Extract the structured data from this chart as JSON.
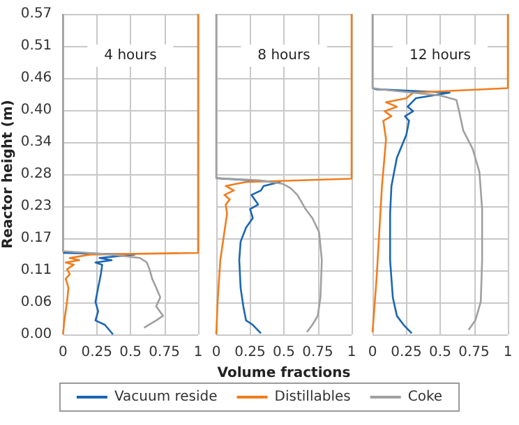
{
  "chart_data": [
    {
      "type": "line",
      "title": "4 hours",
      "ylabel": "Reactor height (m)",
      "xlim": [
        0,
        1
      ],
      "xticks": [
        0,
        0.25,
        0.5,
        0.75,
        1
      ],
      "ylim": [
        0,
        0.57
      ],
      "yticks": [
        {
          "value": 0,
          "label": "0.00"
        },
        {
          "value": 0.057,
          "label": "0.06"
        },
        {
          "value": 0.114,
          "label": "0.11"
        },
        {
          "value": 0.171,
          "label": "0.17"
        },
        {
          "value": 0.228,
          "label": "0.23"
        },
        {
          "value": 0.285,
          "label": "0.28"
        },
        {
          "value": 0.342,
          "label": "0.34"
        },
        {
          "value": 0.399,
          "label": "0.40"
        },
        {
          "value": 0.456,
          "label": "0.46"
        },
        {
          "value": 0.513,
          "label": "0.51"
        },
        {
          "value": 0.57,
          "label": "0.57"
        }
      ],
      "grid": true,
      "marker": "none",
      "line_style": "solid",
      "series": [
        {
          "color": "#1a66b3",
          "x": [
            0.37,
            0.31,
            0.24,
            0.26,
            0.24,
            0.26,
            0.28,
            0.29,
            0.24,
            0.36,
            0.27,
            0.53,
            0
          ],
          "values": [
            0,
            0.017,
            0.025,
            0.041,
            0.058,
            0.083,
            0.107,
            0.124,
            0.128,
            0.132,
            0.136,
            0.142,
            0.145
          ]
        },
        {
          "color": "#f07d1e",
          "x": [
            0,
            0.01,
            0.03,
            0.04,
            0.02,
            0.05,
            0.03,
            0.08,
            0.02,
            0.12,
            0.05,
            0.2,
            1,
            1
          ],
          "values": [
            0,
            0.025,
            0.058,
            0.083,
            0.099,
            0.107,
            0.116,
            0.124,
            0.128,
            0.132,
            0.136,
            0.142,
            0.145,
            0.57
          ]
        },
        {
          "color": "#a0a0a0",
          "x": [
            0.6,
            0.69,
            0.74,
            0.69,
            0.72,
            0.69,
            0.66,
            0.64,
            0.62,
            0.57,
            0.36,
            0,
            0
          ],
          "values": [
            0.012,
            0.025,
            0.033,
            0.05,
            0.066,
            0.083,
            0.099,
            0.116,
            0.128,
            0.136,
            0.142,
            0.148,
            0.57
          ]
        }
      ]
    },
    {
      "type": "line",
      "title": "8 hours",
      "xlabel": "Volume fractions",
      "xlim": [
        0,
        1
      ],
      "xticks": [
        0,
        0.25,
        0.5,
        0.75,
        1
      ],
      "ylim": [
        0,
        0.57
      ],
      "yticks": [
        {
          "value": 0,
          "label": null
        },
        {
          "value": 0.057,
          "label": null
        },
        {
          "value": 0.114,
          "label": null
        },
        {
          "value": 0.171,
          "label": null
        },
        {
          "value": 0.228,
          "label": null
        },
        {
          "value": 0.285,
          "label": null
        },
        {
          "value": 0.342,
          "label": null
        },
        {
          "value": 0.399,
          "label": null
        },
        {
          "value": 0.456,
          "label": null
        },
        {
          "value": 0.513,
          "label": null
        },
        {
          "value": 0.57,
          "label": null
        }
      ],
      "grid": true,
      "legend": "bottom",
      "tick_labels": "x",
      "marker": "none",
      "line_style": "solid",
      "series": [
        {
          "name": "Vacuum reside",
          "color": "#1a66b3",
          "x": [
            0.33,
            0.27,
            0.22,
            0.2,
            0.18,
            0.17,
            0.18,
            0.22,
            0.27,
            0.25,
            0.31,
            0.26,
            0.33,
            0.35,
            0.47,
            0.05,
            0
          ],
          "values": [
            0.002,
            0.017,
            0.025,
            0.05,
            0.083,
            0.132,
            0.165,
            0.19,
            0.207,
            0.223,
            0.231,
            0.248,
            0.256,
            0.264,
            0.271,
            0.277,
            0.278
          ]
        },
        {
          "name": "Distillables",
          "color": "#f07d1e",
          "x": [
            0,
            0.01,
            0.03,
            0.06,
            0.08,
            0.07,
            0.1,
            0.06,
            0.13,
            0.07,
            0.15,
            0.22,
            1,
            1
          ],
          "values": [
            0,
            0.058,
            0.132,
            0.182,
            0.215,
            0.231,
            0.24,
            0.248,
            0.256,
            0.264,
            0.268,
            0.271,
            0.277,
            0.57
          ]
        },
        {
          "name": "Coke",
          "color": "#a0a0a0",
          "x": [
            0.67,
            0.71,
            0.75,
            0.77,
            0.78,
            0.76,
            0.71,
            0.66,
            0.6,
            0.55,
            0.49,
            0.32,
            0,
            0
          ],
          "values": [
            0.004,
            0.017,
            0.033,
            0.066,
            0.132,
            0.182,
            0.207,
            0.223,
            0.248,
            0.26,
            0.268,
            0.274,
            0.278,
            0.57
          ]
        }
      ]
    },
    {
      "type": "line",
      "title": "12 hours",
      "xlim": [
        0,
        1
      ],
      "xticks": [
        0,
        0.25,
        0.5,
        0.75,
        1
      ],
      "ylim": [
        0,
        0.57
      ],
      "yticks": [
        {
          "value": 0,
          "label": null
        },
        {
          "value": 0.057,
          "label": null
        },
        {
          "value": 0.114,
          "label": null
        },
        {
          "value": 0.171,
          "label": null
        },
        {
          "value": 0.228,
          "label": null
        },
        {
          "value": 0.285,
          "label": null
        },
        {
          "value": 0.342,
          "label": null
        },
        {
          "value": 0.399,
          "label": null
        },
        {
          "value": 0.456,
          "label": null
        },
        {
          "value": 0.513,
          "label": null
        },
        {
          "value": 0.57,
          "label": null
        }
      ],
      "grid": true,
      "tick_labels": "x",
      "marker": "none",
      "line_style": "solid",
      "series": [
        {
          "color": "#1a66b3",
          "x": [
            0.29,
            0.23,
            0.18,
            0.15,
            0.13,
            0.13,
            0.14,
            0.18,
            0.25,
            0.27,
            0.24,
            0.3,
            0.26,
            0.32,
            0.57,
            0.03,
            0
          ],
          "values": [
            0.002,
            0.017,
            0.033,
            0.066,
            0.132,
            0.215,
            0.264,
            0.314,
            0.355,
            0.38,
            0.388,
            0.397,
            0.405,
            0.42,
            0.43,
            0.436,
            0.438
          ]
        },
        {
          "color": "#f07d1e",
          "x": [
            0,
            0.03,
            0.05,
            0.07,
            0.1,
            0.08,
            0.14,
            0.09,
            0.18,
            0.1,
            0.25,
            0.3,
            1,
            1
          ],
          "values": [
            0.004,
            0.099,
            0.182,
            0.264,
            0.347,
            0.38,
            0.388,
            0.397,
            0.405,
            0.413,
            0.42,
            0.43,
            0.438,
            0.57
          ]
        },
        {
          "color": "#a0a0a0",
          "x": [
            0.71,
            0.76,
            0.8,
            0.81,
            0.81,
            0.79,
            0.74,
            0.67,
            0.64,
            0.62,
            0.5,
            0.13,
            0,
            0
          ],
          "values": [
            0.008,
            0.025,
            0.058,
            0.132,
            0.223,
            0.289,
            0.33,
            0.363,
            0.397,
            0.417,
            0.425,
            0.434,
            0.438,
            0.57
          ]
        }
      ]
    }
  ]
}
